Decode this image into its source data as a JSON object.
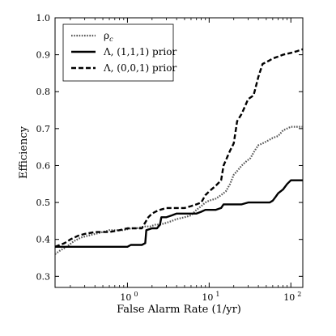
{
  "chart_data": {
    "type": "line",
    "xlabel": "False Alarm Rate (1/yr)",
    "ylabel": "Efficiency",
    "xscale": "log",
    "xlim": [
      0.13,
      140
    ],
    "ylim": [
      0.27,
      1.0
    ],
    "xticks": [
      {
        "value": 1,
        "label": "10"
      },
      {
        "value": 10,
        "label": "10"
      },
      {
        "value": 100,
        "label": "10"
      }
    ],
    "xtick_exponents": [
      "0",
      "1",
      "2"
    ],
    "yticks": [
      {
        "value": 0.3,
        "label": "0.3"
      },
      {
        "value": 0.4,
        "label": "0.4"
      },
      {
        "value": 0.5,
        "label": "0.5"
      },
      {
        "value": 0.6,
        "label": "0.6"
      },
      {
        "value": 0.7,
        "label": "0.7"
      },
      {
        "value": 0.8,
        "label": "0.8"
      },
      {
        "value": 0.9,
        "label": "0.9"
      },
      {
        "value": 1.0,
        "label": "1.0"
      }
    ],
    "grid": false,
    "legend_position": "top-left",
    "series": [
      {
        "name": "ρ",
        "name_subscript": "c",
        "style": "dotted",
        "color": "#555555",
        "x": [
          0.13,
          0.15,
          0.18,
          0.22,
          0.27,
          0.33,
          0.4,
          0.5,
          0.6,
          0.75,
          0.9,
          1.1,
          1.3,
          1.6,
          1.9,
          2.2,
          2.5,
          3.0,
          3.5,
          4.0,
          5.0,
          6.0,
          7.0,
          8.0,
          9.0,
          10.0,
          12.0,
          14.0,
          16.0,
          18.0,
          20.0,
          22.0,
          25.0,
          28.0,
          32.0,
          36.0,
          40.0,
          45.0,
          50.0,
          55.0,
          60.0,
          70.0,
          80.0,
          90.0,
          100.0,
          115.0,
          130.0,
          140.0
        ],
        "y": [
          0.36,
          0.37,
          0.38,
          0.395,
          0.405,
          0.41,
          0.415,
          0.42,
          0.425,
          0.425,
          0.425,
          0.43,
          0.43,
          0.435,
          0.435,
          0.44,
          0.44,
          0.445,
          0.45,
          0.455,
          0.46,
          0.465,
          0.48,
          0.49,
          0.5,
          0.505,
          0.51,
          0.52,
          0.53,
          0.55,
          0.575,
          0.585,
          0.6,
          0.61,
          0.62,
          0.64,
          0.655,
          0.66,
          0.665,
          0.67,
          0.675,
          0.68,
          0.695,
          0.7,
          0.705,
          0.705,
          0.705,
          0.705
        ]
      },
      {
        "name": "Λ, (1,1,1) prior",
        "style": "solid",
        "color": "#000000",
        "x": [
          0.13,
          0.15,
          0.2,
          0.3,
          0.5,
          0.8,
          1.0,
          1.1,
          1.3,
          1.5,
          1.65,
          1.7,
          2.0,
          2.3,
          2.5,
          2.6,
          3.0,
          3.5,
          4.0,
          5.0,
          6.0,
          7.0,
          8.0,
          9.0,
          10.0,
          12.0,
          14.0,
          15.0,
          20.0,
          25.0,
          30.0,
          35.0,
          40.0,
          45.0,
          50.0,
          55.0,
          60.0,
          65.0,
          70.0,
          80.0,
          90.0,
          100.0,
          140.0
        ],
        "y": [
          0.38,
          0.38,
          0.38,
          0.38,
          0.38,
          0.38,
          0.38,
          0.385,
          0.385,
          0.385,
          0.39,
          0.425,
          0.43,
          0.43,
          0.44,
          0.46,
          0.46,
          0.465,
          0.47,
          0.47,
          0.47,
          0.47,
          0.475,
          0.48,
          0.48,
          0.48,
          0.485,
          0.495,
          0.495,
          0.495,
          0.5,
          0.5,
          0.5,
          0.5,
          0.5,
          0.5,
          0.505,
          0.515,
          0.525,
          0.535,
          0.55,
          0.56,
          0.56
        ]
      },
      {
        "name": "Λ, (0,0,1) prior",
        "style": "dashed",
        "color": "#000000",
        "x": [
          0.13,
          0.17,
          0.2,
          0.25,
          0.3,
          0.4,
          0.5,
          0.6,
          0.8,
          1.0,
          1.2,
          1.5,
          1.8,
          2.0,
          2.2,
          2.5,
          3.0,
          3.5,
          4.0,
          5.0,
          6.0,
          7.0,
          8.0,
          9.0,
          10.0,
          12.0,
          14.0,
          15.0,
          18.0,
          20.0,
          22.0,
          25.0,
          30.0,
          35.0,
          40.0,
          45.0,
          50.0,
          55.0,
          60.0,
          70.0,
          80.0,
          100.0,
          120.0,
          140.0
        ],
        "y": [
          0.38,
          0.39,
          0.4,
          0.41,
          0.415,
          0.42,
          0.42,
          0.42,
          0.425,
          0.43,
          0.43,
          0.43,
          0.46,
          0.47,
          0.475,
          0.48,
          0.485,
          0.485,
          0.485,
          0.485,
          0.49,
          0.495,
          0.5,
          0.52,
          0.53,
          0.545,
          0.56,
          0.6,
          0.64,
          0.66,
          0.72,
          0.74,
          0.78,
          0.79,
          0.84,
          0.875,
          0.88,
          0.885,
          0.89,
          0.895,
          0.9,
          0.905,
          0.91,
          0.915
        ]
      }
    ]
  }
}
